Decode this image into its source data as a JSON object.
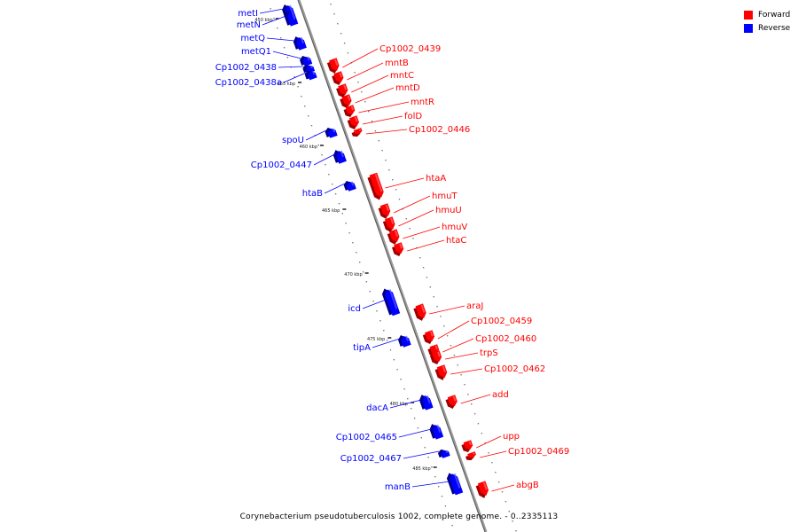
{
  "caption": "Corynebacterium pseudotuberculosis 1002, complete genome. - 0..2335113",
  "legend": {
    "forward": {
      "label": "Forward",
      "color": "#ff0000"
    },
    "reverse": {
      "label": "Reverse",
      "color": "#0000ff"
    }
  },
  "ticks": [
    "450 kbp",
    "455 kbp",
    "460 kbp",
    "465 kbp",
    "470 kbp",
    "475 kbp",
    "480 kbp",
    "485 kbp"
  ],
  "reverse_genes": [
    "metI",
    "metN",
    "metQ",
    "metQ1",
    "Cp1002_0438",
    "Cp1002_0438a",
    "spoU",
    "Cp1002_0447",
    "htaB",
    "icd",
    "tipA",
    "dacA",
    "Cp1002_0465",
    "Cp1002_0467",
    "manB"
  ],
  "forward_genes": [
    "Cp1002_0439",
    "mntB",
    "mntC",
    "mntD",
    "mntR",
    "folD",
    "Cp1002_0446",
    "htaA",
    "hmuT",
    "hmuU",
    "hmuV",
    "htaC",
    "araJ",
    "Cp1002_0459",
    "Cp1002_0460",
    "trpS",
    "Cp1002_0462",
    "add",
    "upp",
    "Cp1002_0469",
    "abgB"
  ]
}
